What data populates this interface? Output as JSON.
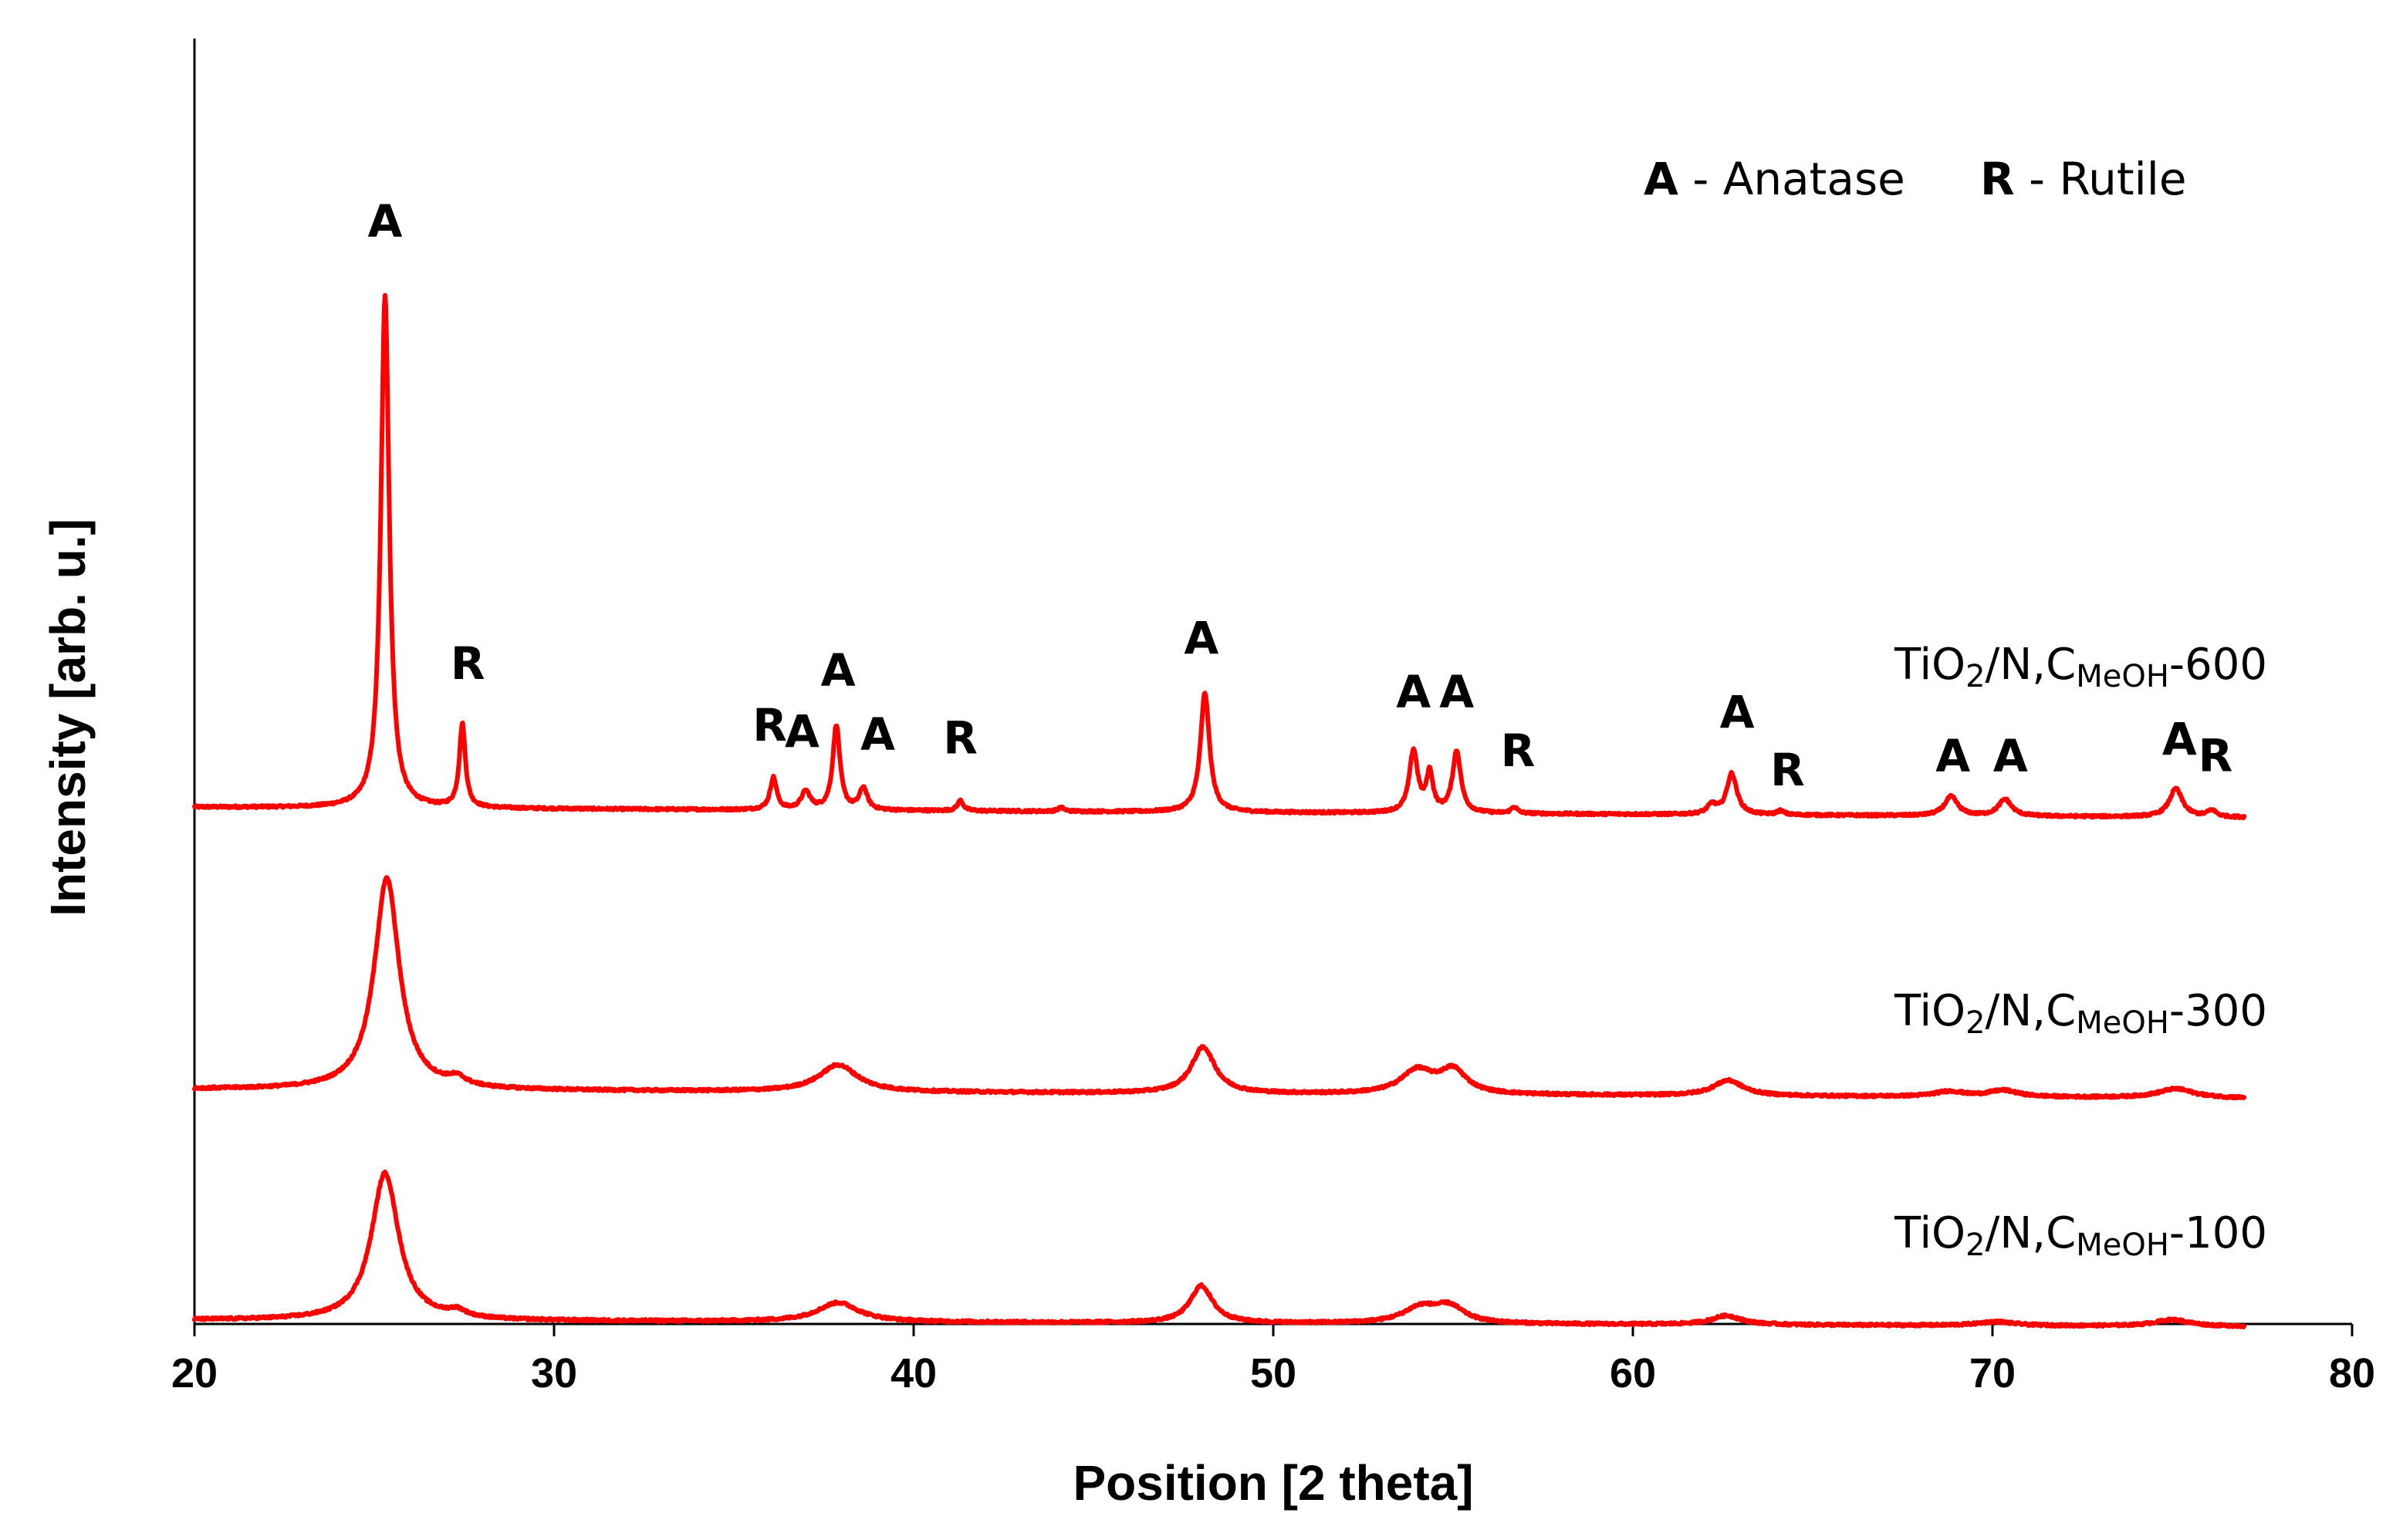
{
  "chart_data": {
    "type": "line",
    "title": "",
    "xlabel": "Position [2 theta]",
    "ylabel": "Intensity [arb. u.]",
    "xlim": [
      20,
      80
    ],
    "ylim": [
      0,
      10
    ],
    "xticks": [
      20,
      30,
      40,
      50,
      60,
      70,
      80
    ],
    "yticks": [],
    "grid": false,
    "line_color": "#FF0000",
    "legend": {
      "placement": "top-right",
      "entries": [
        {
          "key": "A",
          "text": " - Anatase"
        },
        {
          "key": "R",
          "text": " - Rutile"
        }
      ]
    },
    "series": [
      {
        "name": "TiO2/N,CMeOH-600",
        "label_parts": {
          "pre": "TiO",
          "sub1": "2",
          "mid": "/N,C",
          "sub2": "MeOH",
          "post": "-600"
        },
        "offset": 4.0,
        "baseline": [
          [
            20,
            0.0
          ],
          [
            77,
            -0.08
          ]
        ],
        "x_range": [
          20,
          77
        ],
        "peaks": [
          {
            "x": 25.3,
            "h": 4.0,
            "w": 0.14,
            "phase": "A"
          },
          {
            "x": 27.45,
            "h": 0.65,
            "w": 0.1,
            "phase": "R"
          },
          {
            "x": 36.1,
            "h": 0.25,
            "w": 0.11,
            "phase": "R"
          },
          {
            "x": 37.0,
            "h": 0.14,
            "w": 0.15,
            "phase": "A"
          },
          {
            "x": 37.85,
            "h": 0.66,
            "w": 0.12,
            "phase": "A"
          },
          {
            "x": 38.6,
            "h": 0.17,
            "w": 0.13,
            "phase": "A"
          },
          {
            "x": 41.3,
            "h": 0.08,
            "w": 0.1,
            "phase": "R"
          },
          {
            "x": 44.1,
            "h": 0.03,
            "w": 0.1,
            "phase": ""
          },
          {
            "x": 48.1,
            "h": 0.93,
            "w": 0.15,
            "phase": "A"
          },
          {
            "x": 53.9,
            "h": 0.48,
            "w": 0.14,
            "phase": "A"
          },
          {
            "x": 54.35,
            "h": 0.3,
            "w": 0.11,
            "phase": ""
          },
          {
            "x": 55.1,
            "h": 0.48,
            "w": 0.14,
            "phase": "A"
          },
          {
            "x": 56.7,
            "h": 0.05,
            "w": 0.1,
            "phase": "R"
          },
          {
            "x": 62.2,
            "h": 0.07,
            "w": 0.15,
            "phase": ""
          },
          {
            "x": 62.75,
            "h": 0.32,
            "w": 0.17,
            "phase": "A"
          },
          {
            "x": 64.1,
            "h": 0.03,
            "w": 0.12,
            "phase": "R"
          },
          {
            "x": 68.85,
            "h": 0.15,
            "w": 0.22,
            "phase": "A"
          },
          {
            "x": 70.35,
            "h": 0.13,
            "w": 0.22,
            "phase": "A"
          },
          {
            "x": 75.1,
            "h": 0.22,
            "w": 0.22,
            "phase": "A"
          },
          {
            "x": 76.1,
            "h": 0.05,
            "w": 0.15,
            "phase": "R"
          }
        ]
      },
      {
        "name": "TiO2/N,CMeOH-300",
        "label_parts": {
          "pre": "TiO",
          "sub1": "2",
          "mid": "/N,C",
          "sub2": "MeOH",
          "post": "-300"
        },
        "offset": 1.8,
        "baseline": [
          [
            20,
            0.0
          ],
          [
            77,
            -0.07
          ]
        ],
        "x_range": [
          20,
          77
        ],
        "peaks": [
          {
            "x": 25.35,
            "h": 1.65,
            "w": 0.42
          },
          {
            "x": 27.3,
            "h": 0.06,
            "w": 0.3
          },
          {
            "x": 37.9,
            "h": 0.21,
            "w": 0.65
          },
          {
            "x": 48.05,
            "h": 0.36,
            "w": 0.4
          },
          {
            "x": 54.0,
            "h": 0.18,
            "w": 0.55
          },
          {
            "x": 55.0,
            "h": 0.18,
            "w": 0.45
          },
          {
            "x": 62.65,
            "h": 0.12,
            "w": 0.5
          },
          {
            "x": 68.8,
            "h": 0.04,
            "w": 0.5
          },
          {
            "x": 70.3,
            "h": 0.05,
            "w": 0.5
          },
          {
            "x": 75.1,
            "h": 0.07,
            "w": 0.6
          }
        ]
      },
      {
        "name": "TiO2/N,CMeOH-100",
        "label_parts": {
          "pre": "TiO",
          "sub1": "2",
          "mid": "/N,C",
          "sub2": "MeOH",
          "post": "-100"
        },
        "offset": 0.0,
        "baseline": [
          [
            20,
            0.0
          ],
          [
            77,
            -0.05
          ]
        ],
        "x_range": [
          20,
          77
        ],
        "peaks": [
          {
            "x": 25.3,
            "h": 1.15,
            "w": 0.46
          },
          {
            "x": 27.3,
            "h": 0.05,
            "w": 0.3
          },
          {
            "x": 37.9,
            "h": 0.15,
            "w": 0.7
          },
          {
            "x": 48.0,
            "h": 0.29,
            "w": 0.38
          },
          {
            "x": 54.1,
            "h": 0.12,
            "w": 0.6
          },
          {
            "x": 54.9,
            "h": 0.12,
            "w": 0.5
          },
          {
            "x": 62.6,
            "h": 0.07,
            "w": 0.5
          },
          {
            "x": 70.1,
            "h": 0.03,
            "w": 0.6
          },
          {
            "x": 75.0,
            "h": 0.05,
            "w": 0.6
          }
        ]
      }
    ],
    "annotations": [
      {
        "text": "A",
        "x": 25.3,
        "y": 8.45
      },
      {
        "text": "R",
        "x": 27.6,
        "y": 5.0
      },
      {
        "text": "R",
        "x": 36.0,
        "y": 4.52
      },
      {
        "text": "A",
        "x": 36.9,
        "y": 4.47
      },
      {
        "text": "A",
        "x": 37.9,
        "y": 4.95
      },
      {
        "text": "A",
        "x": 39.0,
        "y": 4.45
      },
      {
        "text": "R",
        "x": 41.3,
        "y": 4.42
      },
      {
        "text": "A",
        "x": 48.0,
        "y": 5.2
      },
      {
        "text": "A",
        "x": 53.9,
        "y": 4.78
      },
      {
        "text": "A",
        "x": 55.1,
        "y": 4.78
      },
      {
        "text": "R",
        "x": 56.8,
        "y": 4.32
      },
      {
        "text": "A",
        "x": 62.9,
        "y": 4.62
      },
      {
        "text": "R",
        "x": 64.3,
        "y": 4.17
      },
      {
        "text": "A",
        "x": 68.9,
        "y": 4.28
      },
      {
        "text": "A",
        "x": 70.5,
        "y": 4.28
      },
      {
        "text": "A",
        "x": 75.2,
        "y": 4.41
      },
      {
        "text": "R",
        "x": 76.2,
        "y": 4.28
      }
    ]
  }
}
